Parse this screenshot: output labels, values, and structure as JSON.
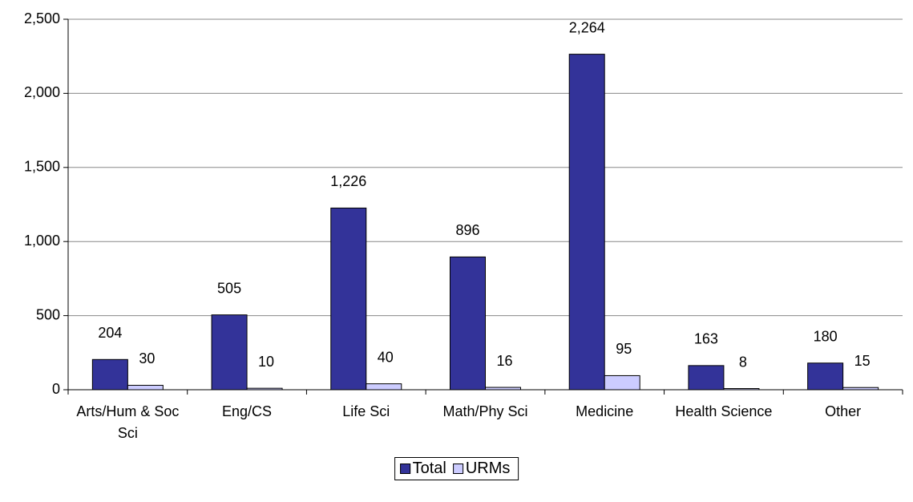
{
  "chart_data": {
    "type": "bar",
    "categories": [
      "Arts/Hum & Soc Sci",
      "Eng/CS",
      "Life Sci",
      "Math/Phy Sci",
      "Medicine",
      "Health Science",
      "Other"
    ],
    "series": [
      {
        "name": "Total",
        "color": "#333399",
        "values": [
          204,
          505,
          1226,
          896,
          2264,
          163,
          180
        ],
        "value_labels": [
          "204",
          "505",
          "1,226",
          "896",
          "2,264",
          "163",
          "180"
        ]
      },
      {
        "name": "URMs",
        "color": "#ccccff",
        "values": [
          30,
          10,
          40,
          16,
          95,
          8,
          15
        ]
      }
    ],
    "ylim": [
      0,
      2500
    ],
    "yticks": [
      0,
      500,
      {
        "value": 1000,
        "label": "1,000"
      },
      {
        "value": 1500,
        "label": "1,500"
      },
      {
        "value": 2000,
        "label": "2,000"
      },
      {
        "value": 2500,
        "label": "2,500"
      }
    ],
    "grid": true,
    "legend": "bottom"
  }
}
